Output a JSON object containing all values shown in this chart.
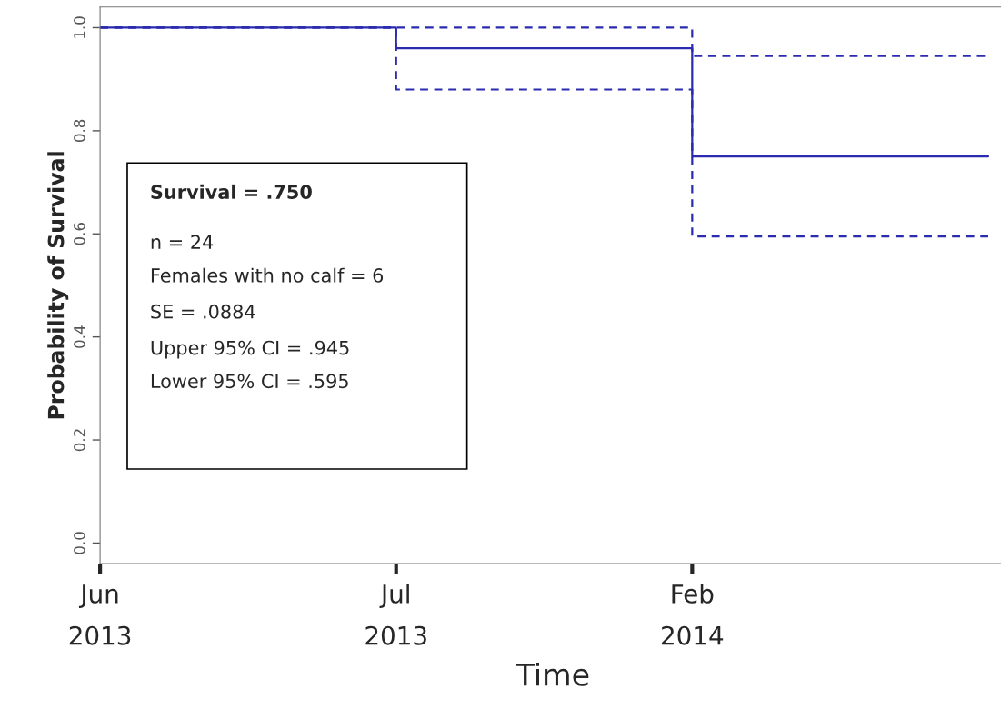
{
  "chart_data": {
    "type": "step",
    "xlabel": "Time",
    "ylabel": "Probability of Survival",
    "categories": [
      "Jun\n2013",
      "Jul\n2013",
      "Feb\n2014",
      null
    ],
    "series": [
      {
        "color": "#2b2bb0",
        "line_style": "solid",
        "values": [
          1.0,
          0.96,
          0.75,
          0.75
        ]
      },
      {
        "color": "#2b2bb0",
        "line_style": "dashed",
        "values": [
          1.0,
          1.0,
          0.945,
          0.945
        ]
      },
      {
        "color": "#2b2bb0",
        "line_style": "dashed",
        "values": [
          1.0,
          0.88,
          0.595,
          0.595
        ]
      }
    ],
    "ylim": [
      -0.04,
      1.04
    ],
    "yticks": [
      {
        "value": 0,
        "label": "0.0"
      },
      {
        "value": 0.2,
        "label": "0.2"
      },
      {
        "value": 0.4,
        "label": "0.4"
      },
      {
        "value": 0.6,
        "label": "0.6"
      },
      {
        "value": 0.8,
        "label": "0.8"
      },
      {
        "value": 1.0,
        "label": "1.0"
      }
    ],
    "annotations": [
      "Survival = .750",
      "n = 24",
      "Females with no calf = 6",
      "SE = .0884",
      "Upper 95% CI = .945",
      "Lower 95% CI = .595"
    ],
    "grid": false,
    "legend": false
  }
}
